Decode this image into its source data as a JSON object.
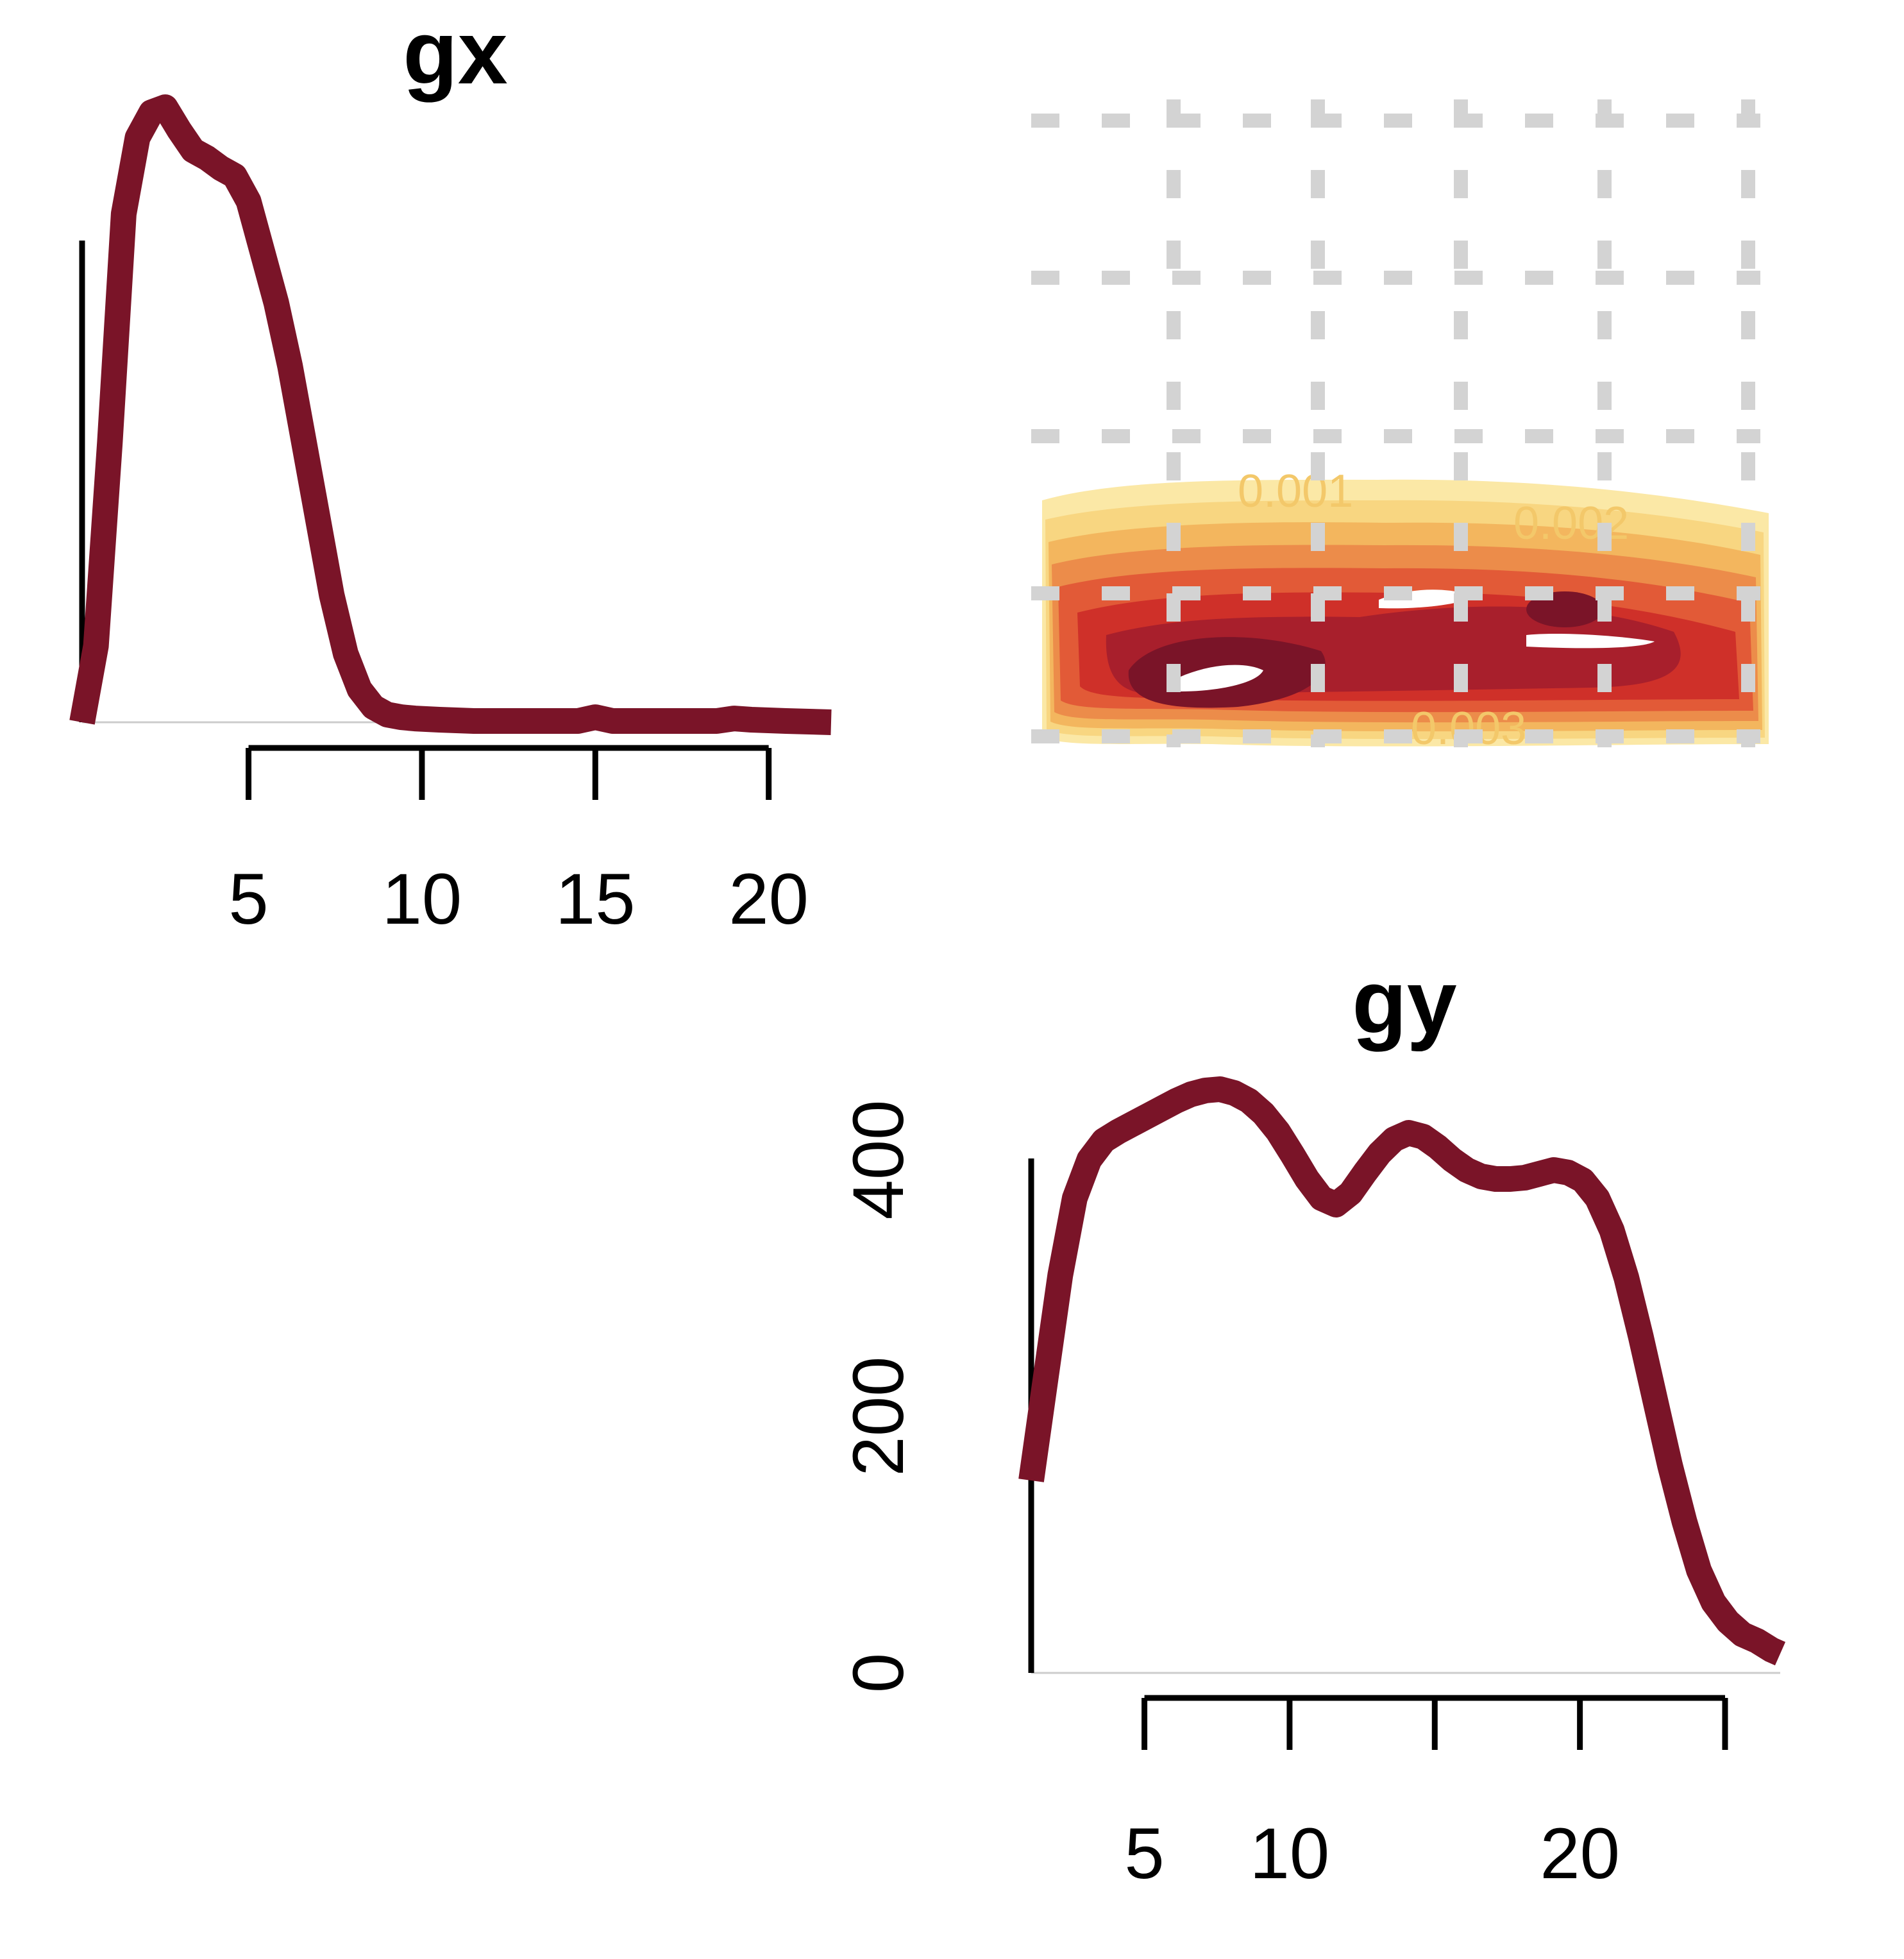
{
  "colors": {
    "line": "#7a1428",
    "grid": "#d3d3d3",
    "contours": [
      "#fbe8a6",
      "#f8d681",
      "#f3b65e",
      "#ec8c4a",
      "#e25a37",
      "#cf3029",
      "#a81f2c",
      "#7a1428"
    ],
    "contour_label": "#f3c86a"
  },
  "chart_data": [
    {
      "type": "line",
      "panel": "density-x",
      "title": "gx",
      "xlabel": "",
      "ylabel": "",
      "xlim": [
        0.2,
        21.8
      ],
      "ylim": [
        0,
        2400
      ],
      "grid": false,
      "x_ticks": [
        5,
        10,
        15,
        20
      ],
      "x_tick_labels": [
        "5",
        "10",
        "15",
        "20"
      ],
      "series": [
        {
          "x": [
            0.2,
            0.6,
            1.0,
            1.4,
            1.8,
            2.2,
            2.6,
            3.0,
            3.4,
            3.8,
            4.2,
            4.6,
            5.0,
            5.4,
            5.8,
            6.2,
            6.6,
            7.0,
            7.4,
            7.8,
            8.2,
            8.6,
            9.0,
            9.4,
            9.8,
            10.5,
            11.5,
            12.5,
            13.5,
            14.5,
            15.0,
            15.5,
            16.5,
            17.5,
            18.5,
            19.0,
            19.5,
            20.5,
            21.8
          ],
          "y": [
            0,
            300,
            1100,
            2000,
            2300,
            2400,
            2420,
            2330,
            2250,
            2220,
            2180,
            2150,
            2050,
            1850,
            1650,
            1400,
            1100,
            800,
            500,
            270,
            130,
            60,
            30,
            20,
            15,
            10,
            5,
            5,
            5,
            5,
            20,
            5,
            5,
            5,
            5,
            15,
            10,
            5,
            0
          ]
        }
      ]
    },
    {
      "type": "line",
      "panel": "density-y",
      "title": "gy",
      "xlabel": "",
      "ylabel": "",
      "xlim": [
        1.1,
        26.9
      ],
      "ylim": [
        0,
        500
      ],
      "grid": false,
      "x_ticks": [
        5,
        10,
        15,
        20,
        25
      ],
      "x_tick_labels": [
        "5",
        "10",
        "",
        "20",
        ""
      ],
      "y_ticks": [
        0,
        200,
        400
      ],
      "y_tick_labels": [
        "0",
        "200",
        "400"
      ],
      "series": [
        {
          "x": [
            1.1,
            1.6,
            2.1,
            2.6,
            3.1,
            3.6,
            4.1,
            4.6,
            5.1,
            5.6,
            6.1,
            6.6,
            7.1,
            7.6,
            8.1,
            8.6,
            9.1,
            9.6,
            10.1,
            10.6,
            11.1,
            11.6,
            12.1,
            12.6,
            13.1,
            13.6,
            14.1,
            14.6,
            15.1,
            15.6,
            16.1,
            16.6,
            17.1,
            17.6,
            18.1,
            18.6,
            19.1,
            19.6,
            20.1,
            20.6,
            21.1,
            21.6,
            22.1,
            22.6,
            23.1,
            23.6,
            24.1,
            24.6,
            25.1,
            25.6,
            26.1,
            26.6,
            26.9
          ],
          "y": [
            150,
            230,
            310,
            370,
            400,
            415,
            422,
            428,
            434,
            440,
            446,
            451,
            454,
            455,
            452,
            446,
            436,
            422,
            404,
            385,
            370,
            365,
            374,
            390,
            405,
            416,
            421,
            418,
            410,
            400,
            392,
            387,
            385,
            385,
            386,
            389,
            392,
            390,
            384,
            370,
            345,
            308,
            262,
            212,
            162,
            118,
            80,
            55,
            40,
            30,
            25,
            18,
            15
          ]
        }
      ]
    },
    {
      "type": "contour",
      "panel": "joint",
      "title": "",
      "xlabel": "",
      "ylabel": "",
      "grid": true,
      "contour_level_labels": [
        "0.001",
        "0.002",
        "0.003"
      ],
      "bands": 8
    }
  ]
}
